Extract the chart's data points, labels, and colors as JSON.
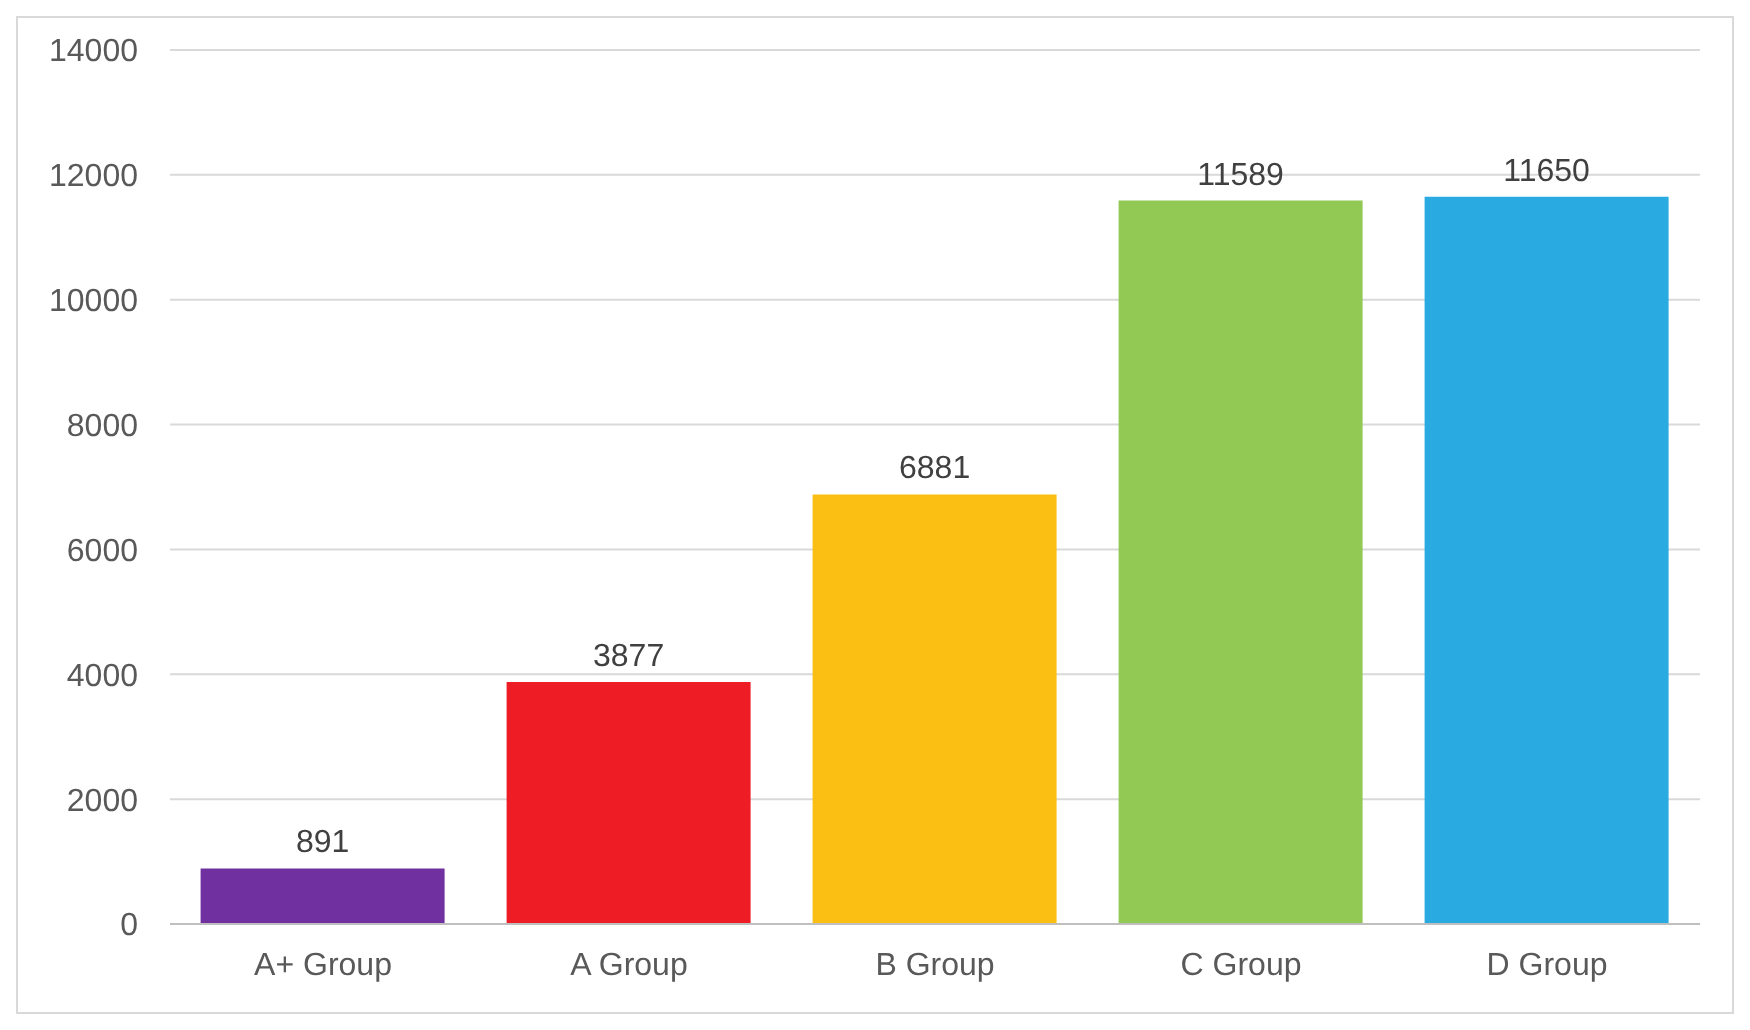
{
  "chart_data": {
    "type": "bar",
    "categories": [
      "A+ Group",
      "A Group",
      "B Group",
      "C Group",
      "D Group"
    ],
    "values": [
      891,
      3877,
      6881,
      11589,
      11650
    ],
    "colors": [
      "#7030a0",
      "#ee1c25",
      "#fbbf14",
      "#92c955",
      "#29abe2"
    ],
    "ylim": [
      0,
      14000
    ],
    "yticks": [
      0,
      2000,
      4000,
      6000,
      8000,
      10000,
      12000,
      14000
    ],
    "grid": "y",
    "data_labels": true,
    "legend": false
  }
}
